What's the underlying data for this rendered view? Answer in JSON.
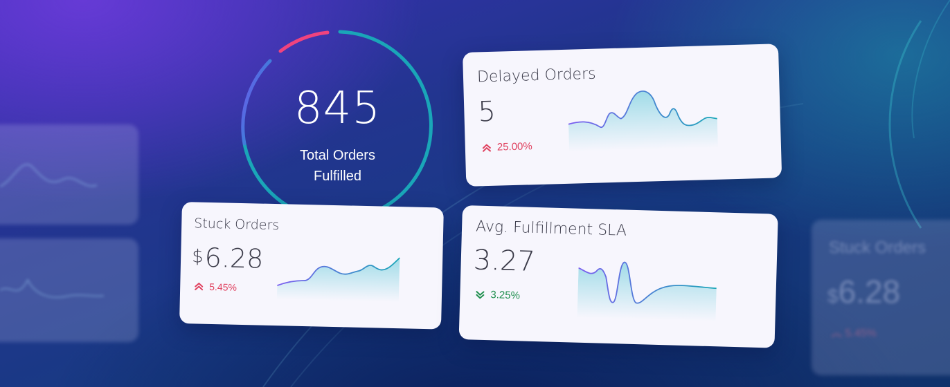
{
  "total_orders": {
    "value": "845",
    "label_line1": "Total Orders",
    "label_line2": "Fulfilled"
  },
  "cards": {
    "delayed": {
      "title": "Delayed Orders",
      "value": "5",
      "change": "25.00%",
      "trend": "up",
      "change_color": "#e0405e"
    },
    "stuck": {
      "title": "Stuck Orders",
      "currency": "$",
      "value": "6.28",
      "change": "5.45%",
      "trend": "up",
      "change_color": "#e0405e"
    },
    "sla": {
      "title": "Avg. Fulfillment SLA",
      "value": "3.27",
      "change": "3.25%",
      "trend": "down",
      "change_color": "#1f8f4e"
    }
  },
  "ghost_right": {
    "title": "Stuck Orders",
    "currency": "$",
    "value": "6.28",
    "change": "5.45%"
  },
  "colors": {
    "ring_pink": "#f0437e",
    "ring_purple": "#7b4cf0",
    "ring_teal": "#1aa6b8",
    "spark_stroke_start": "#7b5cf0",
    "spark_stroke_end": "#1aa6b8",
    "card_bg": "#f7f6fd"
  }
}
